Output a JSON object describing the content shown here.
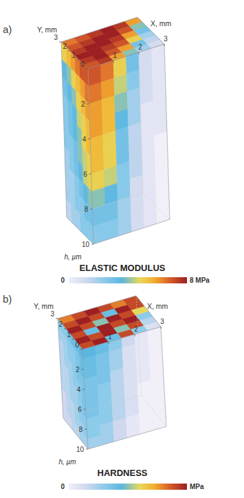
{
  "chart_data": [
    {
      "type": "volume",
      "panel": "a)",
      "title": "ELASTIC MODULUS",
      "x_label": "X, mm",
      "y_label": "Y, mm",
      "z_label": "h, µm",
      "xlim": [
        0,
        3
      ],
      "xticks": [
        1,
        2,
        3
      ],
      "ylim": [
        0,
        3
      ],
      "yticks": [
        0,
        1,
        2,
        3
      ],
      "zlim": [
        0,
        10
      ],
      "zticks": [
        2,
        4,
        6,
        8,
        10
      ],
      "colorbar_range": [
        0,
        8
      ],
      "colorbar_ticks": [
        0,
        {
          "value": 8,
          "label": "8 MPa"
        }
      ],
      "cells": {
        "top": [
          [
            7,
            7.5,
            6,
            4,
            2,
            1
          ],
          [
            7.5,
            8,
            7,
            6,
            3,
            1.5
          ],
          [
            8,
            8,
            7.5,
            7,
            5,
            2
          ],
          [
            7.5,
            8,
            8,
            7.5,
            6,
            3
          ],
          [
            7,
            7.5,
            8,
            8,
            7,
            4
          ],
          [
            6.5,
            7,
            7.5,
            8,
            7.5,
            6
          ]
        ],
        "front_left": [
          [
            7,
            7,
            6.5,
            6,
            5.5,
            5
          ],
          [
            6.5,
            6,
            5.5,
            5,
            4,
            3.5
          ],
          [
            6,
            5.5,
            5,
            4,
            3.5,
            3
          ],
          [
            5.5,
            5,
            4.5,
            3.5,
            3,
            2.5
          ],
          [
            5.5,
            5,
            4,
            3.5,
            3,
            2.5
          ],
          [
            5,
            4.5,
            4,
            3,
            2.5,
            2.5
          ],
          [
            5,
            4.5,
            3.5,
            3,
            2.5,
            2
          ],
          [
            4,
            3.5,
            3,
            2.5,
            2,
            2
          ],
          [
            3,
            3,
            2.5,
            2.5,
            2,
            2
          ],
          [
            2.5,
            2.5,
            2.5,
            2,
            2,
            1.5
          ]
        ],
        "front_right": [
          [
            7,
            6.5,
            5,
            3,
            1,
            0.5
          ],
          [
            6.5,
            6,
            4.5,
            2.5,
            1,
            0.5
          ],
          [
            6,
            5.5,
            4,
            2,
            1,
            0.5
          ],
          [
            6,
            5.5,
            3.5,
            2,
            0.5,
            0.5
          ],
          [
            5.5,
            5,
            3,
            1.5,
            0.5,
            0.5
          ],
          [
            5.5,
            5,
            3,
            1.5,
            0.5,
            0
          ],
          [
            5,
            4.5,
            2.5,
            1.5,
            0.5,
            0
          ],
          [
            4,
            3.5,
            2.5,
            1,
            0.5,
            0
          ],
          [
            3,
            3,
            2,
            1,
            0.5,
            0
          ],
          [
            2.5,
            2.5,
            2,
            1,
            0.5,
            0
          ]
        ]
      }
    },
    {
      "type": "volume",
      "panel": "b)",
      "title": "HARDNESS",
      "x_label": "X, mm",
      "y_label": "Y, mm",
      "z_label": "h, µm",
      "xlim": [
        0,
        3
      ],
      "xticks": [
        1,
        2,
        3
      ],
      "ylim": [
        0,
        3
      ],
      "yticks": [
        0,
        1,
        2,
        3
      ],
      "zlim": [
        0,
        10
      ],
      "zticks": [
        2,
        4,
        6,
        8,
        10
      ],
      "colorbar_range": [
        0,
        1
      ],
      "colorbar_ticks": [
        0
      ],
      "colorbar_unit": "MPa",
      "cells": {
        "top": [
          [
            0.9,
            1,
            0.4,
            0.9,
            0.3,
            0.1
          ],
          [
            1,
            0.9,
            1,
            0.5,
            0.9,
            0.2
          ],
          [
            0.9,
            0.4,
            1,
            0.9,
            1,
            0.3
          ],
          [
            1,
            0.9,
            0.5,
            1,
            0.9,
            0.6
          ],
          [
            0.9,
            1,
            0.9,
            0.4,
            1,
            0.9
          ],
          [
            0.8,
            0.9,
            1,
            0.9,
            0.8,
            0.9
          ]
        ],
        "front_left": [
          [
            0.45,
            0.4,
            0.4,
            0.35,
            0.3,
            0.3
          ],
          [
            0.4,
            0.35,
            0.3,
            0.3,
            0.25,
            0.25
          ],
          [
            0.4,
            0.35,
            0.3,
            0.3,
            0.25,
            0.2
          ],
          [
            0.35,
            0.35,
            0.3,
            0.25,
            0.25,
            0.2
          ],
          [
            0.35,
            0.3,
            0.3,
            0.25,
            0.2,
            0.2
          ],
          [
            0.35,
            0.3,
            0.25,
            0.25,
            0.2,
            0.2
          ],
          [
            0.35,
            0.3,
            0.25,
            0.25,
            0.2,
            0.2
          ],
          [
            0.3,
            0.3,
            0.25,
            0.2,
            0.2,
            0.15
          ],
          [
            0.3,
            0.25,
            0.25,
            0.2,
            0.2,
            0.15
          ],
          [
            0.25,
            0.25,
            0.2,
            0.2,
            0.15,
            0.15
          ]
        ],
        "front_right": [
          [
            0.45,
            0.4,
            0.3,
            0.15,
            0.05,
            0
          ],
          [
            0.4,
            0.35,
            0.25,
            0.1,
            0.05,
            0
          ],
          [
            0.4,
            0.35,
            0.25,
            0.1,
            0.05,
            0
          ],
          [
            0.35,
            0.35,
            0.2,
            0.1,
            0.05,
            0
          ],
          [
            0.35,
            0.3,
            0.2,
            0.1,
            0.05,
            0
          ],
          [
            0.35,
            0.3,
            0.2,
            0.1,
            0,
            0
          ],
          [
            0.35,
            0.3,
            0.2,
            0.1,
            0,
            0
          ],
          [
            0.3,
            0.3,
            0.2,
            0.1,
            0,
            0
          ],
          [
            0.3,
            0.25,
            0.15,
            0.05,
            0,
            0
          ],
          [
            0.25,
            0.25,
            0.15,
            0.05,
            0,
            0
          ]
        ]
      }
    }
  ]
}
